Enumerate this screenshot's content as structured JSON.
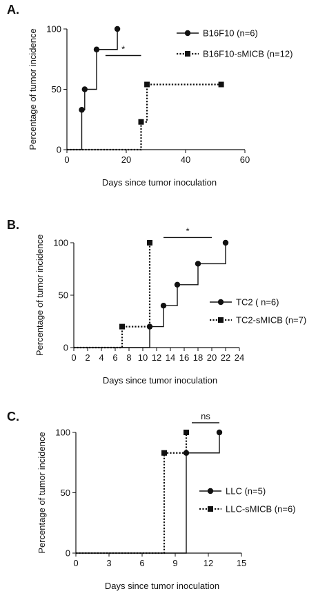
{
  "chart_data": [
    {
      "panel_label": "A.",
      "type": "line",
      "step": true,
      "xlabel": "Days since tumor inoculation",
      "ylabel": "Percentage of tumor incidence",
      "xlim": [
        0,
        60
      ],
      "ylim": [
        0,
        100
      ],
      "xticks": [
        0,
        20,
        40,
        60
      ],
      "yticks": [
        0,
        50,
        100
      ],
      "legend_position": "top-right",
      "series": [
        {
          "name": "B16F10 (n=6)",
          "marker": "circle",
          "style": "solid",
          "x": [
            0,
            5,
            6,
            10,
            17
          ],
          "y": [
            0,
            33,
            50,
            83,
            100
          ],
          "markers_x": [
            5,
            6,
            10,
            17
          ]
        },
        {
          "name": "B16F10-sMICB  (n=12)",
          "marker": "square",
          "style": "dotted",
          "x": [
            0,
            25,
            27,
            52
          ],
          "y": [
            0,
            23,
            54,
            54
          ],
          "markers_x": [
            25,
            27,
            52
          ]
        }
      ],
      "annotation": {
        "text": "*",
        "x_from": 13,
        "x_to": 25,
        "y": 78
      }
    },
    {
      "panel_label": "B.",
      "type": "line",
      "step": true,
      "xlabel": "Days since tumor inoculation",
      "ylabel": "Percentage of tumor incidence",
      "xlim": [
        0,
        24
      ],
      "ylim": [
        0,
        100
      ],
      "xticks": [
        0,
        2,
        4,
        6,
        8,
        10,
        12,
        14,
        16,
        18,
        20,
        22,
        24
      ],
      "yticks": [
        0,
        50,
        100
      ],
      "legend_position": "right",
      "series": [
        {
          "name": "TC2 ( n=6)",
          "marker": "circle",
          "style": "solid",
          "x": [
            0,
            11,
            13,
            15,
            18,
            22
          ],
          "y": [
            0,
            20,
            40,
            60,
            80,
            100
          ],
          "markers_x": [
            11,
            13,
            15,
            18,
            22
          ]
        },
        {
          "name": "TC2-sMICB  (n=7)",
          "marker": "square",
          "style": "dotted",
          "x": [
            0,
            7,
            11
          ],
          "y": [
            0,
            20,
            100
          ],
          "markers_x": [
            7,
            11
          ]
        }
      ],
      "annotation": {
        "text": "*",
        "x_from": 13,
        "x_to": 20,
        "y": 105
      }
    },
    {
      "panel_label": "C.",
      "type": "line",
      "step": true,
      "xlabel": "Days since tumor inoculation",
      "ylabel": "Percentage of tumor incidence",
      "xlim": [
        0,
        15
      ],
      "ylim": [
        0,
        100
      ],
      "xticks": [
        0,
        3,
        6,
        9,
        12,
        15
      ],
      "yticks": [
        0,
        50,
        100
      ],
      "legend_position": "right",
      "series": [
        {
          "name": "LLC  (n=5)",
          "marker": "circle",
          "style": "solid",
          "x": [
            0,
            10,
            13
          ],
          "y": [
            0,
            83,
            100
          ],
          "markers_x": [
            10,
            13
          ]
        },
        {
          "name": "LLC-sMICB  (n=6)",
          "marker": "square",
          "style": "dotted",
          "x": [
            0,
            8,
            10
          ],
          "y": [
            0,
            83,
            100
          ],
          "markers_x": [
            8,
            10
          ]
        }
      ],
      "annotation": {
        "text": "ns",
        "x_from": 10.5,
        "x_to": 13,
        "y": 108
      }
    }
  ]
}
